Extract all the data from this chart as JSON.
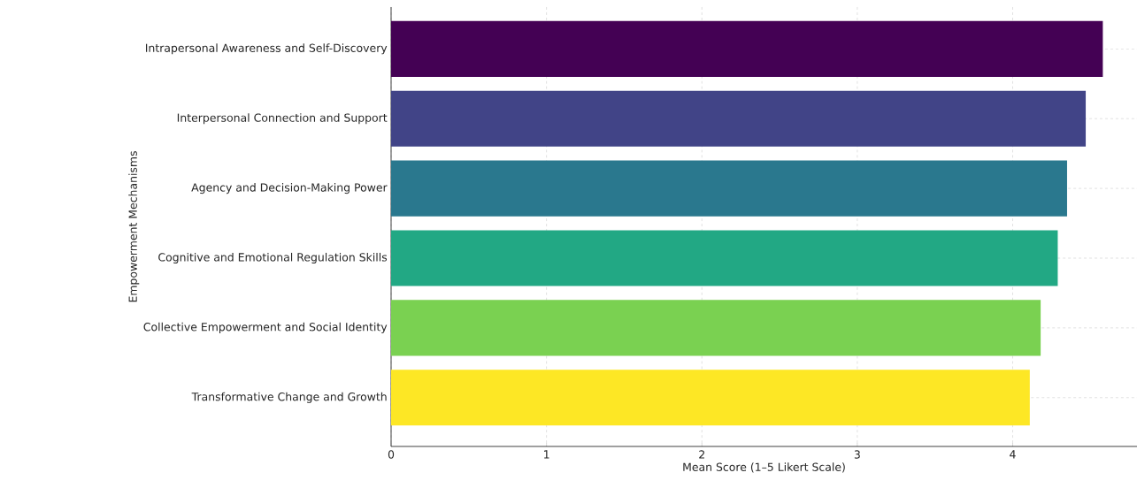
{
  "chart_data": {
    "type": "bar",
    "orientation": "horizontal",
    "xlabel": "Mean Score (1–5 Likert Scale)",
    "ylabel": "Empowerment Mechanisms",
    "categories": [
      "Intrapersonal Awareness and Self-Discovery",
      "Interpersonal Connection and Support",
      "Agency and Decision-Making Power",
      "Cognitive and Emotional Regulation Skills",
      "Collective Empowerment and Social Identity",
      "Transformative Change and Growth"
    ],
    "values": [
      4.58,
      4.47,
      4.35,
      4.29,
      4.18,
      4.11
    ],
    "colors": [
      "#440154",
      "#414487",
      "#2a788e",
      "#22a884",
      "#7ad151",
      "#fde725"
    ],
    "xlim": [
      0,
      4.8
    ],
    "xticks": [
      0,
      1,
      2,
      3,
      4
    ],
    "grid": true
  }
}
